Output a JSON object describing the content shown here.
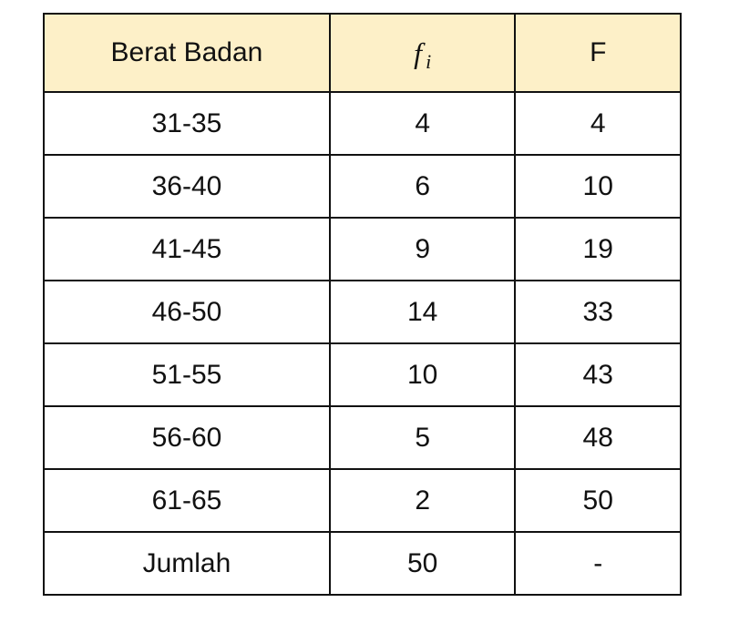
{
  "table": {
    "headers": {
      "berat_badan": "Berat Badan",
      "fi_main": "f",
      "fi_sub": "i",
      "F": "F"
    },
    "rows": [
      {
        "berat": "31-35",
        "fi": "4",
        "F": "4"
      },
      {
        "berat": "36-40",
        "fi": "6",
        "F": "10"
      },
      {
        "berat": "41-45",
        "fi": "9",
        "F": "19"
      },
      {
        "berat": "46-50",
        "fi": "14",
        "F": "33"
      },
      {
        "berat": "51-55",
        "fi": "10",
        "F": "43"
      },
      {
        "berat": "56-60",
        "fi": "5",
        "F": "48"
      },
      {
        "berat": "61-65",
        "fi": "2",
        "F": "50"
      },
      {
        "berat": "Jumlah",
        "fi": "50",
        "F": "-"
      }
    ],
    "header_bg": "#fdf0c8"
  }
}
